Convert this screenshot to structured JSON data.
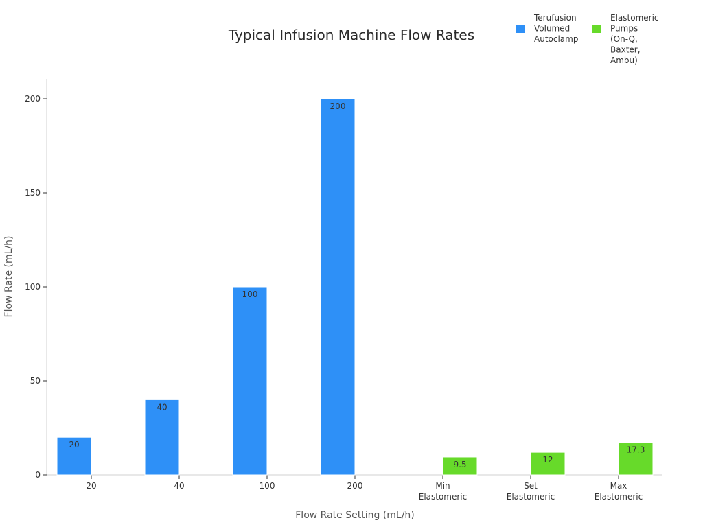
{
  "chart_data": {
    "type": "bar",
    "title": "Typical Infusion Machine Flow Rates",
    "xlabel": "Flow Rate Setting (mL/h)",
    "ylabel": "Flow Rate (mL/h)",
    "ylim": [
      0,
      210
    ],
    "yticks": [
      0,
      50,
      100,
      150,
      200
    ],
    "grid": false,
    "legend_position": "top-right",
    "categories": [
      [
        "20"
      ],
      [
        "40"
      ],
      [
        "100"
      ],
      [
        "200"
      ],
      [
        "Min",
        "Elastomeric"
      ],
      [
        "Set",
        "Elastomeric"
      ],
      [
        "Max",
        "Elastomeric"
      ]
    ],
    "series": [
      {
        "name": "Terufusion Volumed Autoclamp",
        "legend_lines": [
          "Terufusion",
          "Volumed",
          "Autoclamp"
        ],
        "color": "#2e90f7",
        "values": [
          20,
          40,
          100,
          200,
          null,
          null,
          null
        ],
        "labels": [
          "20",
          "40",
          "100",
          "200",
          null,
          null,
          null
        ]
      },
      {
        "name": "Elastomeric Pumps (On-Q, Baxter, Ambu)",
        "legend_lines": [
          "Elastomeric",
          "Pumps",
          "(On-Q,",
          "Baxter,",
          "Ambu)"
        ],
        "color": "#67da2a",
        "values": [
          null,
          null,
          null,
          null,
          9.5,
          12,
          17.3
        ],
        "labels": [
          null,
          null,
          null,
          null,
          "9.5",
          "12",
          "17.3"
        ]
      }
    ]
  }
}
